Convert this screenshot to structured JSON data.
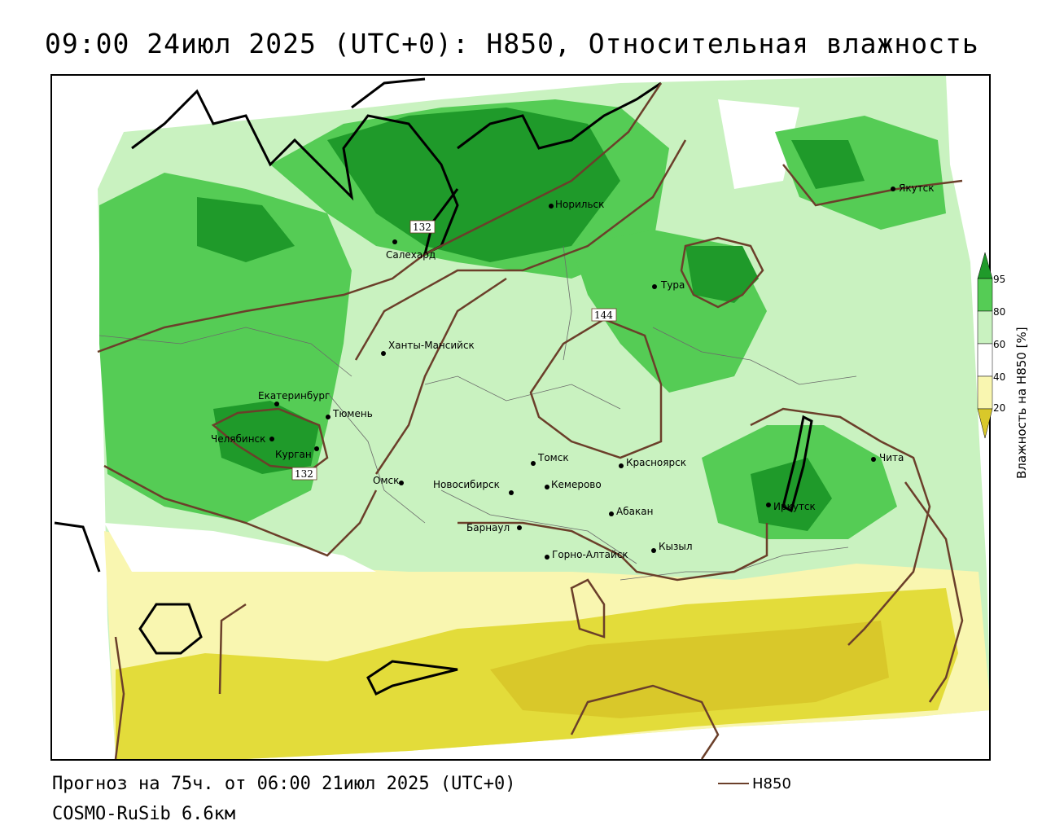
{
  "title": "09:00 24июл 2025 (UTC+0): H850, Относительная влажность",
  "footer": {
    "forecast": "Прогноз на 75ч. от 06:00 21июл 2025 (UTC+0)",
    "model": "COSMO-RuSib 6.6км"
  },
  "legend": {
    "line_label": "H850",
    "line_color": "#6b3f2a"
  },
  "colorbar": {
    "label": "Влажность на H850 [%]",
    "ticks": [
      "95",
      "80",
      "60",
      "40",
      "20"
    ],
    "colors": {
      "very_dry": "#d9c82a",
      "dry": "#e3dc3a",
      "semi_dry": "#f9f6b0",
      "neutral": "#ffffff",
      "moist": "#c9f2c0",
      "wet": "#55cc55",
      "very_wet": "#1f9a2a",
      "saturated": "#0f7a1a"
    }
  },
  "isolines": {
    "label_132a": "132",
    "label_132b": "132",
    "label_144": "144"
  },
  "cities": {
    "yakutsk": "Якутск",
    "norilsk": "Норильск",
    "salekhard": "Салехард",
    "tura": "Тура",
    "khanty": "Ханты-Мансийск",
    "ekaterinburg": "Екатеринбург",
    "tyumen": "Тюмень",
    "chelyabinsk": "Челябинск",
    "kurgan": "Курган",
    "omsk": "Омск",
    "novosibirsk": "Новосибирск",
    "tomsk": "Томск",
    "kemerovo": "Кемерово",
    "krasnoyarsk": "Красноярск",
    "abakan": "Абакан",
    "barnaul": "Барнаул",
    "gorno": "Горно-Алтайск",
    "kyzyl": "Кызыл",
    "irkutsk": "Иркутск",
    "chita": "Чита"
  }
}
